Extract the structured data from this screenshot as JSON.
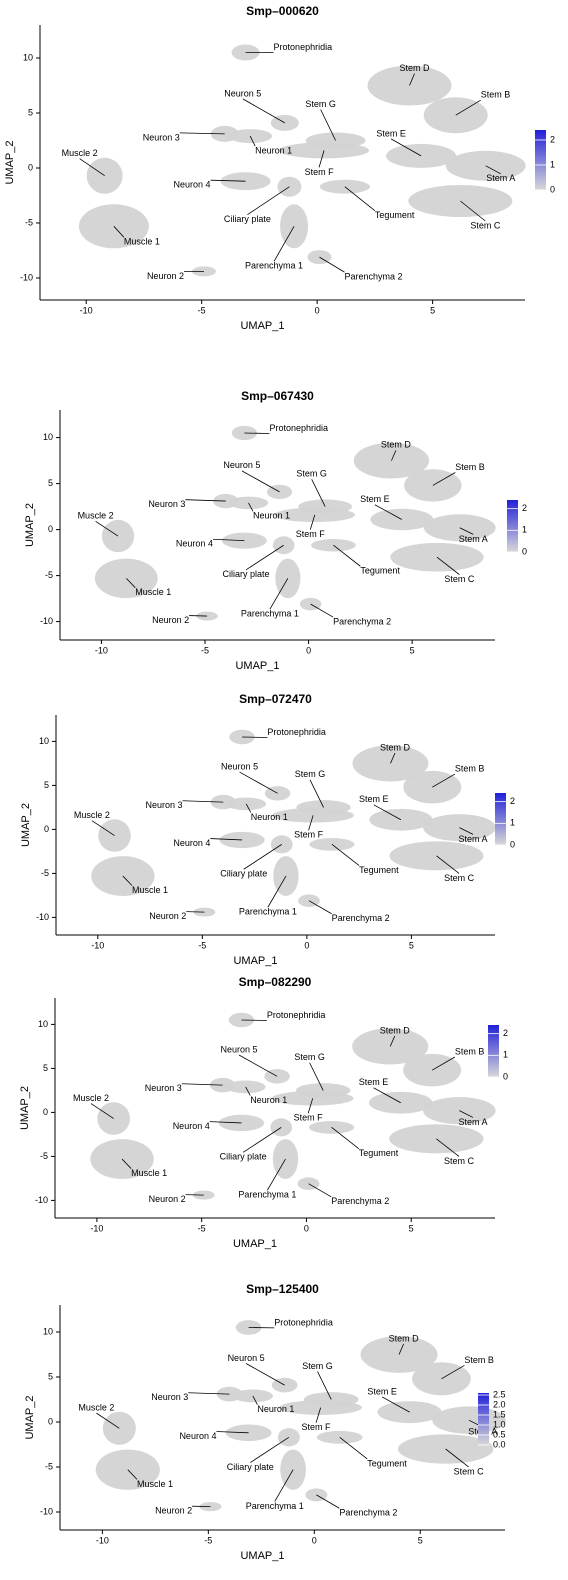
{
  "chart_data": [
    {
      "type": "scatter",
      "title": "Smp–000620",
      "x_label": "UMAP_1",
      "y_label": "UMAP_2",
      "xlim": [
        -12,
        9
      ],
      "ylim": [
        -12,
        13
      ],
      "xticks": [
        -10,
        -5,
        0,
        5
      ],
      "yticks": [
        -10,
        -5,
        0,
        5,
        10
      ],
      "point_color": "#d3d3d3",
      "colorbar": {
        "colors": [
          "#d9d9d9",
          "#2020d8"
        ],
        "lim": [
          0,
          2.4
        ],
        "ticks": [
          0,
          1,
          2
        ]
      },
      "clusters": [
        {
          "name": "Protonephridia",
          "x": -3.1,
          "y": 10.5
        },
        {
          "name": "Stem D",
          "x": 4.0,
          "y": 7.5
        },
        {
          "name": "Stem B",
          "x": 6.0,
          "y": 4.8
        },
        {
          "name": "Neuron 5",
          "x": -1.4,
          "y": 4.1
        },
        {
          "name": "Stem G",
          "x": 0.8,
          "y": 2.5
        },
        {
          "name": "Neuron 3",
          "x": -4.0,
          "y": 3.1
        },
        {
          "name": "Neuron 1",
          "x": -2.9,
          "y": 2.9
        },
        {
          "name": "Stem E",
          "x": 4.5,
          "y": 1.1
        },
        {
          "name": "Stem A",
          "x": 7.3,
          "y": 0.2
        },
        {
          "name": "Muscle 2",
          "x": -9.2,
          "y": -0.7
        },
        {
          "name": "Neuron 4",
          "x": -3.1,
          "y": -1.2
        },
        {
          "name": "Stem F",
          "x": 0.3,
          "y": 1.6
        },
        {
          "name": "Tegument",
          "x": 1.2,
          "y": -1.7
        },
        {
          "name": "Stem C",
          "x": 6.2,
          "y": -3.0
        },
        {
          "name": "Ciliary plate",
          "x": -1.2,
          "y": -1.7
        },
        {
          "name": "Muscle 1",
          "x": -8.8,
          "y": -5.3
        },
        {
          "name": "Parenchyma 1",
          "x": -1.0,
          "y": -5.3
        },
        {
          "name": "Neuron 2",
          "x": -4.9,
          "y": -9.4
        },
        {
          "name": "Parenchyma 2",
          "x": 0.1,
          "y": -8.1
        }
      ]
    },
    {
      "type": "scatter",
      "title": "Smp–067430",
      "x_label": "UMAP_1",
      "y_label": "UMAP_2",
      "xlim": [
        -12,
        9
      ],
      "ylim": [
        -12,
        13
      ],
      "xticks": [
        -10,
        -5,
        0,
        5
      ],
      "yticks": [
        -10,
        -5,
        0,
        5,
        10
      ],
      "point_color": "#d3d3d3",
      "colorbar": {
        "colors": [
          "#d9d9d9",
          "#2020d8"
        ],
        "lim": [
          0,
          2.4
        ],
        "ticks": [
          0,
          1,
          2
        ]
      },
      "clusters": [
        {
          "name": "Protonephridia",
          "x": -3.1,
          "y": 10.5
        },
        {
          "name": "Stem D",
          "x": 4.0,
          "y": 7.5
        },
        {
          "name": "Stem B",
          "x": 6.0,
          "y": 4.8
        },
        {
          "name": "Neuron 5",
          "x": -1.4,
          "y": 4.1
        },
        {
          "name": "Stem G",
          "x": 0.8,
          "y": 2.5
        },
        {
          "name": "Neuron 3",
          "x": -4.0,
          "y": 3.1
        },
        {
          "name": "Neuron 1",
          "x": -2.9,
          "y": 2.9
        },
        {
          "name": "Stem E",
          "x": 4.5,
          "y": 1.1
        },
        {
          "name": "Stem A",
          "x": 7.3,
          "y": 0.2
        },
        {
          "name": "Muscle 2",
          "x": -9.2,
          "y": -0.7
        },
        {
          "name": "Neuron 4",
          "x": -3.1,
          "y": -1.2
        },
        {
          "name": "Stem F",
          "x": 0.3,
          "y": 1.6
        },
        {
          "name": "Tegument",
          "x": 1.2,
          "y": -1.7
        },
        {
          "name": "Stem C",
          "x": 6.2,
          "y": -3.0
        },
        {
          "name": "Ciliary plate",
          "x": -1.2,
          "y": -1.7
        },
        {
          "name": "Muscle 1",
          "x": -8.8,
          "y": -5.3
        },
        {
          "name": "Parenchyma 1",
          "x": -1.0,
          "y": -5.3
        },
        {
          "name": "Neuron 2",
          "x": -4.9,
          "y": -9.4
        },
        {
          "name": "Parenchyma 2",
          "x": 0.1,
          "y": -8.1
        }
      ]
    },
    {
      "type": "scatter",
      "title": "Smp–072470",
      "x_label": "UMAP_1",
      "y_label": "UMAP_2",
      "xlim": [
        -12,
        9
      ],
      "ylim": [
        -12,
        13
      ],
      "xticks": [
        -10,
        -5,
        0,
        5
      ],
      "yticks": [
        -10,
        -5,
        0,
        5,
        10
      ],
      "point_color": "#d3d3d3",
      "colorbar": {
        "colors": [
          "#d9d9d9",
          "#2020d8"
        ],
        "lim": [
          0,
          2.4
        ],
        "ticks": [
          0,
          1,
          2
        ]
      },
      "clusters": [
        {
          "name": "Protonephridia",
          "x": -3.1,
          "y": 10.5
        },
        {
          "name": "Stem D",
          "x": 4.0,
          "y": 7.5
        },
        {
          "name": "Stem B",
          "x": 6.0,
          "y": 4.8
        },
        {
          "name": "Neuron 5",
          "x": -1.4,
          "y": 4.1
        },
        {
          "name": "Stem G",
          "x": 0.8,
          "y": 2.5
        },
        {
          "name": "Neuron 3",
          "x": -4.0,
          "y": 3.1
        },
        {
          "name": "Neuron 1",
          "x": -2.9,
          "y": 2.9
        },
        {
          "name": "Stem E",
          "x": 4.5,
          "y": 1.1
        },
        {
          "name": "Stem A",
          "x": 7.3,
          "y": 0.2
        },
        {
          "name": "Muscle 2",
          "x": -9.2,
          "y": -0.7
        },
        {
          "name": "Neuron 4",
          "x": -3.1,
          "y": -1.2
        },
        {
          "name": "Stem F",
          "x": 0.3,
          "y": 1.6
        },
        {
          "name": "Tegument",
          "x": 1.2,
          "y": -1.7
        },
        {
          "name": "Stem C",
          "x": 6.2,
          "y": -3.0
        },
        {
          "name": "Ciliary plate",
          "x": -1.2,
          "y": -1.7
        },
        {
          "name": "Muscle 1",
          "x": -8.8,
          "y": -5.3
        },
        {
          "name": "Parenchyma 1",
          "x": -1.0,
          "y": -5.3
        },
        {
          "name": "Neuron 2",
          "x": -4.9,
          "y": -9.4
        },
        {
          "name": "Parenchyma 2",
          "x": 0.1,
          "y": -8.1
        }
      ]
    },
    {
      "type": "scatter",
      "title": "Smp–082290",
      "x_label": "UMAP_1",
      "y_label": "UMAP_2",
      "xlim": [
        -12,
        9
      ],
      "ylim": [
        -12,
        13
      ],
      "xticks": [
        -10,
        -5,
        0,
        5
      ],
      "yticks": [
        -10,
        -5,
        0,
        5,
        10
      ],
      "point_color": "#d3d3d3",
      "colorbar": {
        "colors": [
          "#d9d9d9",
          "#2020d8"
        ],
        "lim": [
          0,
          2.4
        ],
        "ticks": [
          0,
          1,
          2
        ]
      },
      "clusters": [
        {
          "name": "Protonephridia",
          "x": -3.1,
          "y": 10.5
        },
        {
          "name": "Stem D",
          "x": 4.0,
          "y": 7.5
        },
        {
          "name": "Stem B",
          "x": 6.0,
          "y": 4.8
        },
        {
          "name": "Neuron 5",
          "x": -1.4,
          "y": 4.1
        },
        {
          "name": "Stem G",
          "x": 0.8,
          "y": 2.5
        },
        {
          "name": "Neuron 3",
          "x": -4.0,
          "y": 3.1
        },
        {
          "name": "Neuron 1",
          "x": -2.9,
          "y": 2.9
        },
        {
          "name": "Stem E",
          "x": 4.5,
          "y": 1.1
        },
        {
          "name": "Stem A",
          "x": 7.3,
          "y": 0.2
        },
        {
          "name": "Muscle 2",
          "x": -9.2,
          "y": -0.7
        },
        {
          "name": "Neuron 4",
          "x": -3.1,
          "y": -1.2
        },
        {
          "name": "Stem F",
          "x": 0.3,
          "y": 1.6
        },
        {
          "name": "Tegument",
          "x": 1.2,
          "y": -1.7
        },
        {
          "name": "Stem C",
          "x": 6.2,
          "y": -3.0
        },
        {
          "name": "Ciliary plate",
          "x": -1.2,
          "y": -1.7
        },
        {
          "name": "Muscle 1",
          "x": -8.8,
          "y": -5.3
        },
        {
          "name": "Parenchyma 1",
          "x": -1.0,
          "y": -5.3
        },
        {
          "name": "Neuron 2",
          "x": -4.9,
          "y": -9.4
        },
        {
          "name": "Parenchyma 2",
          "x": 0.1,
          "y": -8.1
        }
      ]
    },
    {
      "type": "scatter",
      "title": "Smp–125400",
      "x_label": "UMAP_1",
      "y_label": "UMAP_2",
      "xlim": [
        -12,
        9
      ],
      "ylim": [
        -12,
        13
      ],
      "xticks": [
        -10,
        -5,
        0,
        5
      ],
      "yticks": [
        -10,
        -5,
        0,
        5,
        10
      ],
      "point_color": "#d3d3d3",
      "colorbar": {
        "colors": [
          "#d9d9d9",
          "#2020d8"
        ],
        "lim": [
          0,
          2.6
        ],
        "ticks": [
          {
            "value": 0,
            "label": "0.0"
          },
          0.5,
          {
            "value": 1,
            "label": "1.0"
          },
          1.5,
          {
            "value": 2,
            "label": "2.0"
          },
          2.5
        ]
      },
      "clusters": [
        {
          "name": "Protonephridia",
          "x": -3.1,
          "y": 10.5
        },
        {
          "name": "Stem D",
          "x": 4.0,
          "y": 7.5
        },
        {
          "name": "Stem B",
          "x": 6.0,
          "y": 4.8
        },
        {
          "name": "Neuron 5",
          "x": -1.4,
          "y": 4.1
        },
        {
          "name": "Stem G",
          "x": 0.8,
          "y": 2.5
        },
        {
          "name": "Neuron 3",
          "x": -4.0,
          "y": 3.1
        },
        {
          "name": "Neuron 1",
          "x": -2.9,
          "y": 2.9
        },
        {
          "name": "Stem E",
          "x": 4.5,
          "y": 1.1
        },
        {
          "name": "Stem A",
          "x": 7.3,
          "y": 0.2
        },
        {
          "name": "Muscle 2",
          "x": -9.2,
          "y": -0.7
        },
        {
          "name": "Neuron 4",
          "x": -3.1,
          "y": -1.2
        },
        {
          "name": "Stem F",
          "x": 0.3,
          "y": 1.6
        },
        {
          "name": "Tegument",
          "x": 1.2,
          "y": -1.7
        },
        {
          "name": "Stem C",
          "x": 6.2,
          "y": -3.0
        },
        {
          "name": "Ciliary plate",
          "x": -1.2,
          "y": -1.7
        },
        {
          "name": "Muscle 1",
          "x": -8.8,
          "y": -5.3
        },
        {
          "name": "Parenchyma 1",
          "x": -1.0,
          "y": -5.3
        },
        {
          "name": "Neuron 2",
          "x": -4.9,
          "y": -9.4
        },
        {
          "name": "Parenchyma 2",
          "x": 0.1,
          "y": -8.1
        }
      ]
    }
  ]
}
